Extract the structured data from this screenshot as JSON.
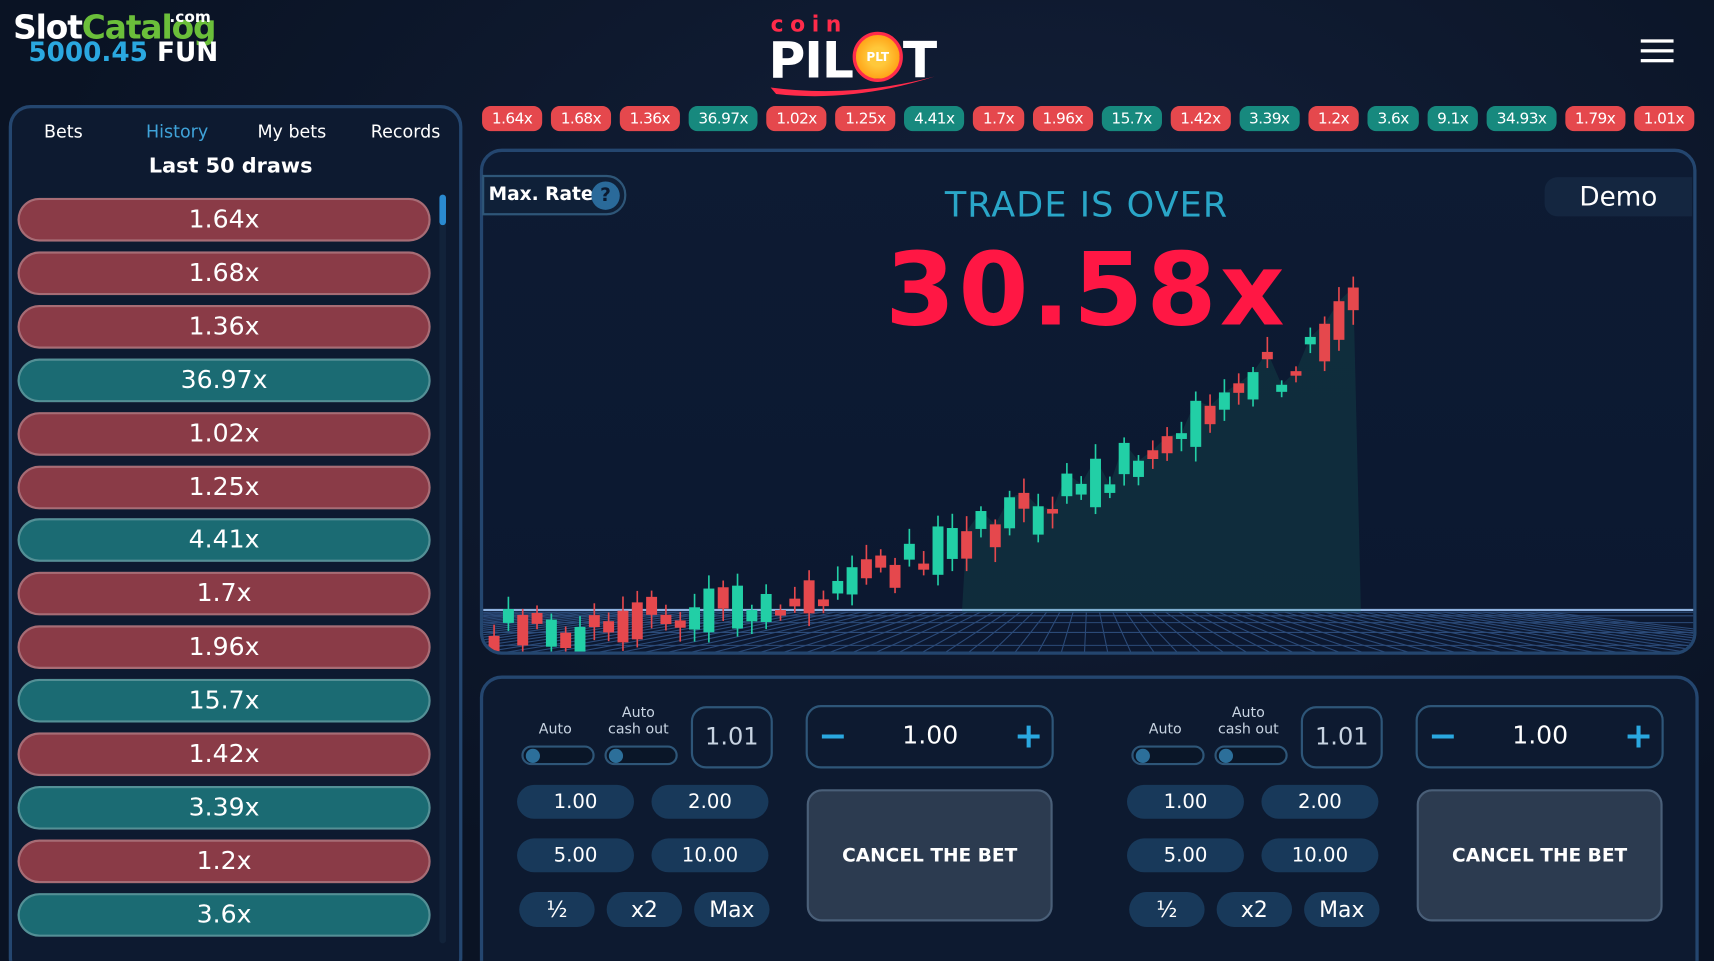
{
  "watermark": {
    "brand": "Slot",
    "brand2": "Catalog",
    "suffix": ".com"
  },
  "header": {
    "balance": "5000.45",
    "currency": "FUN",
    "logo_top": "coin",
    "logo_left": "PIL",
    "logo_badge": "PLT",
    "logo_right": "T"
  },
  "history_strip": [
    {
      "label": "1.64x",
      "color": "#e5484d"
    },
    {
      "label": "1.68x",
      "color": "#e5484d"
    },
    {
      "label": "1.36x",
      "color": "#e5484d"
    },
    {
      "label": "36.97x",
      "color": "#17897e"
    },
    {
      "label": "1.02x",
      "color": "#e5484d"
    },
    {
      "label": "1.25x",
      "color": "#e5484d"
    },
    {
      "label": "4.41x",
      "color": "#17897e"
    },
    {
      "label": "1.7x",
      "color": "#e5484d"
    },
    {
      "label": "1.96x",
      "color": "#e5484d"
    },
    {
      "label": "15.7x",
      "color": "#17897e"
    },
    {
      "label": "1.42x",
      "color": "#e5484d"
    },
    {
      "label": "3.39x",
      "color": "#17897e"
    },
    {
      "label": "1.2x",
      "color": "#e5484d"
    },
    {
      "label": "3.6x",
      "color": "#17897e"
    },
    {
      "label": "9.1x",
      "color": "#17897e"
    },
    {
      "label": "34.93x",
      "color": "#17897e"
    },
    {
      "label": "1.79x",
      "color": "#e5484d"
    },
    {
      "label": "1.01x",
      "color": "#e5484d"
    }
  ],
  "sidebar": {
    "tabs": [
      "Bets",
      "History",
      "My bets",
      "Records"
    ],
    "active_tab": 1,
    "heading": "Last 50 draws",
    "draws": [
      {
        "label": "1.64x",
        "color": "#8a3b47"
      },
      {
        "label": "1.68x",
        "color": "#8a3b47"
      },
      {
        "label": "1.36x",
        "color": "#8a3b47"
      },
      {
        "label": "36.97x",
        "color": "#1b6b73"
      },
      {
        "label": "1.02x",
        "color": "#8a3b47"
      },
      {
        "label": "1.25x",
        "color": "#8a3b47"
      },
      {
        "label": "4.41x",
        "color": "#1b6b73"
      },
      {
        "label": "1.7x",
        "color": "#8a3b47"
      },
      {
        "label": "1.96x",
        "color": "#8a3b47"
      },
      {
        "label": "15.7x",
        "color": "#1b6b73"
      },
      {
        "label": "1.42x",
        "color": "#8a3b47"
      },
      {
        "label": "3.39x",
        "color": "#1b6b73"
      },
      {
        "label": "1.2x",
        "color": "#8a3b47"
      },
      {
        "label": "3.6x",
        "color": "#1b6b73"
      }
    ]
  },
  "game": {
    "max_rate": "Max. Rate",
    "help": "?",
    "status": "TRADE IS OVER",
    "multiplier": "30.58x",
    "mode": "Demo"
  },
  "bet_panels": [
    {
      "auto": "Auto",
      "auto_cashout": [
        "Auto",
        "cash out"
      ],
      "cashout_value": "1.01",
      "minus": "−",
      "amount": "1.00",
      "plus": "+",
      "quick": [
        "1.00",
        "2.00",
        "5.00",
        "10.00"
      ],
      "extra": [
        "½",
        "x2",
        "Max"
      ],
      "cancel": "CANCEL THE BET"
    },
    {
      "auto": "Auto",
      "auto_cashout": [
        "Auto",
        "cash out"
      ],
      "cashout_value": "1.01",
      "minus": "−",
      "amount": "1.00",
      "plus": "+",
      "quick": [
        "1.00",
        "2.00",
        "5.00",
        "10.00"
      ],
      "extra": [
        "½",
        "x2",
        "Max"
      ],
      "cancel": "CANCEL THE BET"
    }
  ]
}
